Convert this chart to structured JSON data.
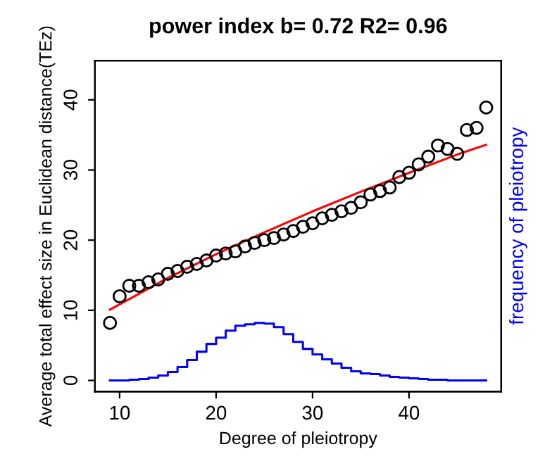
{
  "chart_data": {
    "type": "scatter",
    "title": "power index b= 0.72 R2= 0.96",
    "xlabel": "Degree of pleiotropy",
    "ylabel": "Average total effect size in Euclidean distance(TEz)",
    "y2label": "frequency of pleiotropy",
    "xlim": [
      7.44,
      49.56
    ],
    "ylim": [
      -1.6,
      45.6
    ],
    "xticks": [
      10,
      20,
      30,
      40
    ],
    "yticks": [
      0,
      10,
      20,
      30,
      40
    ],
    "grid": false,
    "legend": false,
    "marker": "circle",
    "series": [
      {
        "color": "#000000",
        "x": [
          9,
          10,
          11,
          12,
          13,
          14,
          15,
          16,
          17,
          18,
          19,
          20,
          21,
          22,
          23,
          24,
          25,
          26,
          27,
          28,
          29,
          30,
          31,
          32,
          33,
          34,
          35,
          36,
          37,
          38,
          39,
          40,
          41,
          42,
          43,
          44,
          45,
          46,
          47,
          48
        ],
        "values": [
          8.2,
          12,
          13.5,
          13.5,
          14,
          14.4,
          15.2,
          15.6,
          16.2,
          16.6,
          17.1,
          17.8,
          18.1,
          18.4,
          19.1,
          19.6,
          20,
          20.3,
          20.8,
          21.3,
          21.9,
          22.4,
          23.1,
          23.6,
          24.1,
          24.6,
          25.4,
          26.5,
          27,
          27.5,
          29,
          29.6,
          30.8,
          31.9,
          33.5,
          33,
          32.3,
          35.7,
          36,
          38.9
        ]
      },
      {
        "type": "line",
        "color": "#ff0000",
        "marker": "none",
        "x": [
          9,
          15,
          20,
          25,
          30,
          35,
          40,
          45,
          48
        ],
        "values": [
          10.1,
          14.6,
          18.0,
          21.1,
          24.1,
          26.9,
          29.6,
          32.2,
          33.6
        ]
      },
      {
        "type": "step",
        "color": "#0000ff",
        "marker": "none",
        "x": [
          9,
          10,
          11,
          12,
          13,
          14,
          15,
          16,
          17,
          18,
          19,
          20,
          21,
          22,
          23,
          24,
          25,
          26,
          27,
          28,
          29,
          30,
          31,
          32,
          33,
          34,
          35,
          36,
          37,
          38,
          39,
          40,
          41,
          42,
          43,
          44,
          45,
          46,
          47,
          48
        ],
        "values": [
          0,
          0,
          0.1,
          0.2,
          0.4,
          0.7,
          1.2,
          1.9,
          2.9,
          4.1,
          5.2,
          6.1,
          7.1,
          7.8,
          8.0,
          8.2,
          8.1,
          7.6,
          6.6,
          5.5,
          4.5,
          3.7,
          3.0,
          2.4,
          1.8,
          1.3,
          1.0,
          0.9,
          0.7,
          0.5,
          0.4,
          0.3,
          0.2,
          0.1,
          0.1,
          0,
          0,
          0,
          0,
          0
        ]
      }
    ]
  }
}
